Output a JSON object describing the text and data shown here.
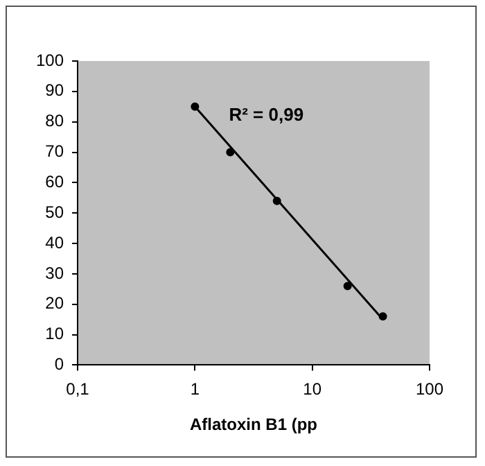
{
  "chart_data": {
    "type": "scatter",
    "xlabel": "Aflatoxin B1 (pp",
    "log": "x",
    "xlim": [
      0.1,
      100
    ],
    "xticks": [
      {
        "value": 0.1,
        "label": "0,1"
      },
      1,
      10,
      100
    ],
    "ylim": [
      0,
      100
    ],
    "yticks": [
      0,
      10,
      20,
      30,
      40,
      50,
      60,
      70,
      80,
      90,
      100
    ],
    "grid": false,
    "legend": false,
    "marker": "circle",
    "annotations": [
      "R² = 0,99"
    ],
    "series": [
      {
        "color": "#000000",
        "x": [
          1,
          2,
          5,
          20,
          40
        ],
        "values": [
          85,
          70,
          54,
          26,
          16
        ]
      },
      {
        "type": "line",
        "color": "#000000",
        "x": [
          1,
          40
        ],
        "values": [
          85,
          15
        ],
        "marker": "none",
        "line_style": "solid"
      }
    ]
  }
}
